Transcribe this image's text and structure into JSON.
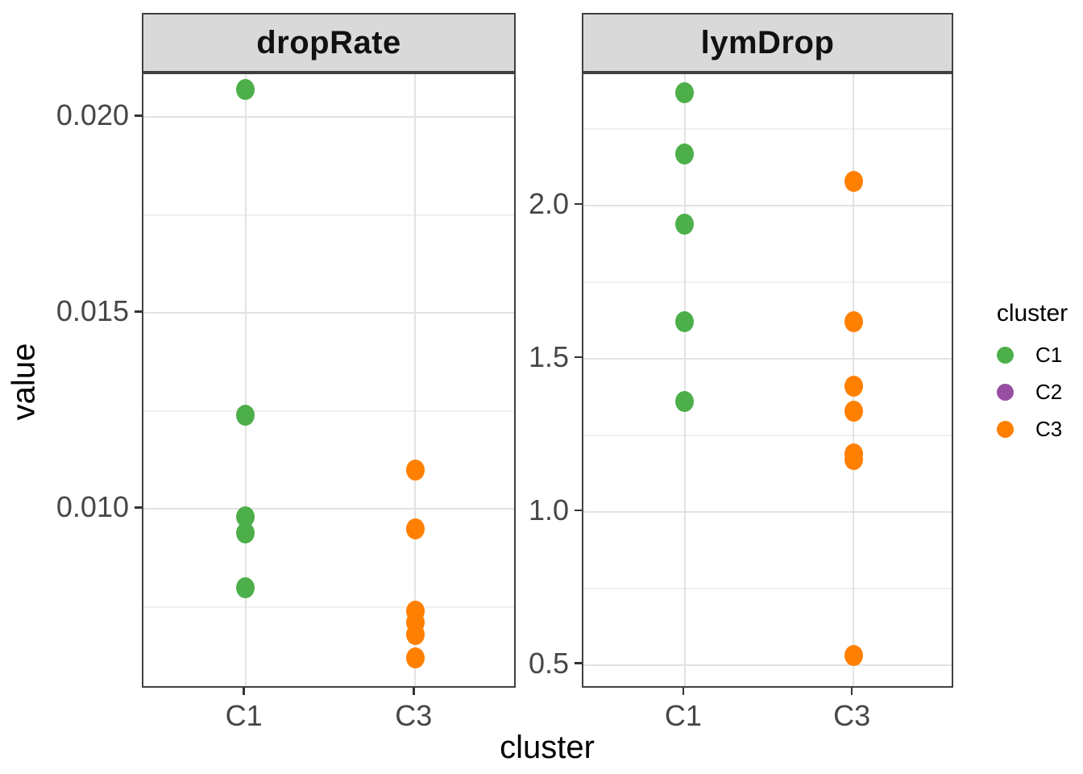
{
  "figure": {
    "background": "#FFFFFF"
  },
  "titles": {
    "x": "cluster",
    "y": "value"
  },
  "legend": {
    "title": "cluster",
    "entries": [
      {
        "label": "C1",
        "color": "#4DAF4A"
      },
      {
        "label": "C2",
        "color": "#984EA3"
      },
      {
        "label": "C3",
        "color": "#FF7F00"
      }
    ]
  },
  "chart_data": [
    {
      "type": "scatter",
      "facet": "dropRate",
      "xlabel": "cluster",
      "ylabel": "value",
      "categories": [
        "C1",
        "C3"
      ],
      "series": [
        {
          "name": "C1",
          "color": "#4DAF4A",
          "values": [
            0.0207,
            0.0124,
            0.0098,
            0.0094,
            0.008
          ]
        },
        {
          "name": "C3",
          "color": "#FF7F00",
          "values": [
            0.011,
            0.0095,
            0.0074,
            0.0071,
            0.0068,
            0.0062
          ]
        }
      ],
      "ylim": [
        0.0054,
        0.0211
      ],
      "yticks": {
        "values": [
          0.01,
          0.015,
          0.02
        ],
        "labels": [
          "0.010",
          "0.015",
          "0.020"
        ]
      },
      "yminor": [
        0.0075,
        0.0125,
        0.0175
      ],
      "grid": true,
      "legend_position": "right"
    },
    {
      "type": "scatter",
      "facet": "lymDrop",
      "xlabel": "cluster",
      "ylabel": "value",
      "categories": [
        "C1",
        "C3"
      ],
      "series": [
        {
          "name": "C1",
          "color": "#4DAF4A",
          "values": [
            2.37,
            2.17,
            1.94,
            1.62,
            1.36
          ]
        },
        {
          "name": "C3",
          "color": "#FF7F00",
          "values": [
            2.08,
            1.62,
            1.41,
            1.33,
            1.19,
            1.17,
            0.53
          ]
        }
      ],
      "ylim": [
        0.42,
        2.43
      ],
      "yticks": {
        "values": [
          0.5,
          1.0,
          1.5,
          2.0
        ],
        "labels": [
          "0.5",
          "1.0",
          "1.5",
          "2.0"
        ]
      },
      "yminor": [
        0.75,
        1.25,
        1.75,
        2.25
      ],
      "grid": true,
      "legend_position": "right"
    }
  ]
}
